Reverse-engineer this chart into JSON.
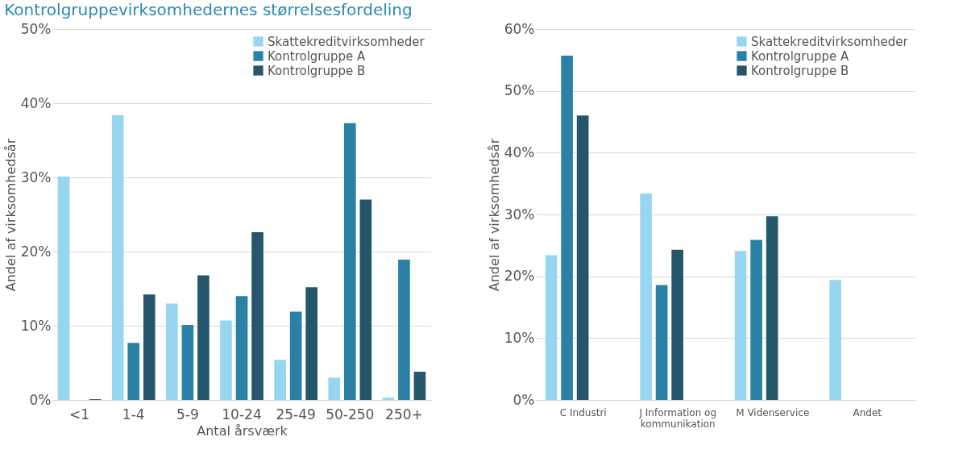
{
  "chart_data": [
    {
      "type": "bar",
      "title": "Kontrolgruppevirksomhedernes størrelsesfordeling",
      "xlabel": "Antal årsværk",
      "ylabel": "Andel af virksomhedsår",
      "categories": [
        "<1",
        "1-4",
        "5-9",
        "10-24",
        "25-49",
        "50-250",
        "250+"
      ],
      "series": [
        {
          "name": "Skattekreditvirksomheder",
          "color": "#97d6f0",
          "values": [
            30.1,
            38.4,
            13.0,
            10.7,
            5.4,
            3.0,
            0.3
          ]
        },
        {
          "name": "Kontrolgruppe A",
          "color": "#2a81a6",
          "values": [
            0,
            7.7,
            10.1,
            14.0,
            11.9,
            37.3,
            18.9
          ]
        },
        {
          "name": "Kontrolgruppe B",
          "color": "#25566b",
          "values": [
            0.1,
            14.2,
            16.8,
            22.6,
            15.2,
            27.0,
            3.8
          ]
        }
      ],
      "ylim": [
        0,
        50
      ],
      "yticks": [
        {
          "value": 0,
          "label": "0%"
        },
        {
          "value": 10,
          "label": "10%"
        },
        {
          "value": 20,
          "label": "20%"
        },
        {
          "value": 30,
          "label": "30%"
        },
        {
          "value": 40,
          "label": "40%"
        },
        {
          "value": 50,
          "label": "50%"
        }
      ],
      "grid": "y",
      "legend": "top right"
    },
    {
      "type": "bar",
      "ylabel": "Andel af virksomhedsår",
      "categories": [
        "C Industri",
        "J Information og kommunikation",
        "M Videnservice",
        "Andet"
      ],
      "series": [
        {
          "name": "Skattekreditvirksomheder",
          "color": "#97d6f0",
          "values": [
            23.4,
            33.4,
            24.1,
            19.4
          ]
        },
        {
          "name": "Kontrolgruppe A",
          "color": "#2a81a6",
          "values": [
            55.7,
            18.6,
            25.9,
            null
          ]
        },
        {
          "name": "Kontrolgruppe B",
          "color": "#25566b",
          "values": [
            46.0,
            24.3,
            29.7,
            null
          ]
        }
      ],
      "ylim": [
        0,
        60
      ],
      "yticks": [
        {
          "value": 0,
          "label": "0%"
        },
        {
          "value": 10,
          "label": "10%"
        },
        {
          "value": 20,
          "label": "20%"
        },
        {
          "value": 30,
          "label": "30%"
        },
        {
          "value": 40,
          "label": "40%"
        },
        {
          "value": 50,
          "label": "50%"
        },
        {
          "value": 60,
          "label": "60%"
        }
      ],
      "grid": "y",
      "legend": "top right"
    }
  ]
}
